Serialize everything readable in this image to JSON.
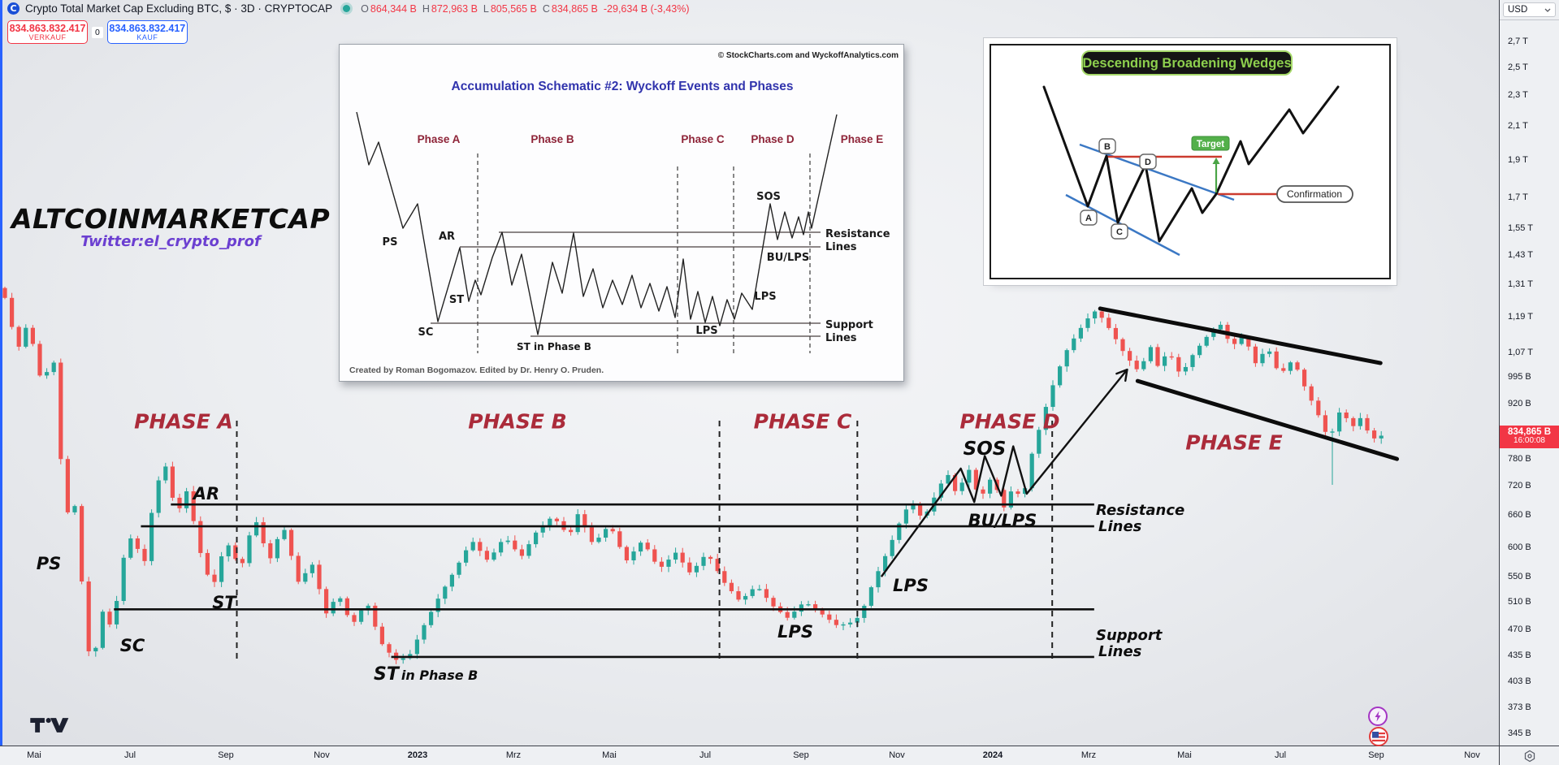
{
  "header": {
    "symbol_title": "Crypto Total Market Cap Excluding BTC, $ · 3D · CRYPTOCAP",
    "symbol_logo_letter": "C",
    "ohlc": [
      {
        "k": "O",
        "v": "864,344 B"
      },
      {
        "k": "H",
        "v": "872,963 B"
      },
      {
        "k": "L",
        "v": "805,565 B"
      },
      {
        "k": "C",
        "v": "834,865 B"
      }
    ],
    "change": "-29,634 B (-3,43%)"
  },
  "trade_panel": {
    "sell_value": "834.863.832.417",
    "sell_label": "VERKAUF",
    "spread": "0",
    "buy_value": "834.863.832.417",
    "buy_label": "KAUF"
  },
  "watermark": {
    "title": "ALTCOINMARKETCAP",
    "subtitle": "Twitter:el_crypto_prof"
  },
  "chart_labels": {
    "phase_a": "PHASE A",
    "phase_b": "PHASE B",
    "phase_c": "PHASE C",
    "phase_d": "PHASE D",
    "phase_e": "PHASE E",
    "ps": "PS",
    "sc": "SC",
    "st": "ST",
    "ar": "AR",
    "st_b_big": "ST",
    "st_b_small": "in Phase B",
    "lps_c": "LPS",
    "lps_d": "LPS",
    "sos": "SOS",
    "bu_lps": "BU/LPS",
    "resistance_1": "Resistance",
    "resistance_2": "Lines",
    "support_1": "Support",
    "support_2": "Lines"
  },
  "schematic": {
    "copyright": "© StockCharts.com and WyckoffAnalytics.com",
    "title": "Accumulation Schematic #2: Wyckoff Events and Phases",
    "phases": [
      "Phase A",
      "Phase B",
      "Phase C",
      "Phase D",
      "Phase E"
    ],
    "labels": {
      "ps": "PS",
      "ar": "AR",
      "sc": "SC",
      "st": "ST",
      "st_b": "ST in Phase B",
      "lps_c": "LPS",
      "lps_d": "LPS",
      "sos": "SOS",
      "bu": "BU/LPS",
      "res1": "Resistance",
      "res2": "Lines",
      "sup1": "Support",
      "sup2": "Lines"
    },
    "credit": "Created by Roman Bogomazov. Edited by Dr. Henry O. Pruden."
  },
  "wedges": {
    "title": "Descending Broadening Wedges",
    "target": "Target",
    "confirmation": "Confirmation",
    "points": [
      "A",
      "B",
      "C",
      "D"
    ]
  },
  "price_axis": {
    "currency": "USD",
    "last_price_value": 834.865,
    "price_badge": {
      "price": "834,865 B",
      "countdown": "16:00:08"
    },
    "ticks": [
      {
        "label": "2,7 T",
        "v": 2700
      },
      {
        "label": "2,5 T",
        "v": 2500
      },
      {
        "label": "2,3 T",
        "v": 2300
      },
      {
        "label": "2,1 T",
        "v": 2100
      },
      {
        "label": "1,9 T",
        "v": 1900
      },
      {
        "label": "1,7 T",
        "v": 1700
      },
      {
        "label": "1,55 T",
        "v": 1550
      },
      {
        "label": "1,43 T",
        "v": 1430
      },
      {
        "label": "1,31 T",
        "v": 1310
      },
      {
        "label": "1,19 T",
        "v": 1190
      },
      {
        "label": "1,07 T",
        "v": 1070
      },
      {
        "label": "995 B",
        "v": 995
      },
      {
        "label": "920 B",
        "v": 920
      },
      {
        "label": "780 B",
        "v": 780
      },
      {
        "label": "720 B",
        "v": 720
      },
      {
        "label": "660 B",
        "v": 660
      },
      {
        "label": "600 B",
        "v": 600
      },
      {
        "label": "550 B",
        "v": 550
      },
      {
        "label": "510 B",
        "v": 510
      },
      {
        "label": "470 B",
        "v": 470
      },
      {
        "label": "435 B",
        "v": 435
      },
      {
        "label": "403 B",
        "v": 403
      },
      {
        "label": "373 B",
        "v": 373
      },
      {
        "label": "345 B",
        "v": 345
      }
    ]
  },
  "time_axis": {
    "ticks": [
      {
        "label": "Mai"
      },
      {
        "label": "Jul"
      },
      {
        "label": "Sep"
      },
      {
        "label": "Nov"
      },
      {
        "label": "2023",
        "major": true
      },
      {
        "label": "Mrz"
      },
      {
        "label": "Mai"
      },
      {
        "label": "Jul"
      },
      {
        "label": "Sep"
      },
      {
        "label": "Nov"
      },
      {
        "label": "2024",
        "major": true
      },
      {
        "label": "Mrz"
      },
      {
        "label": "Mai"
      },
      {
        "label": "Jul"
      },
      {
        "label": "Sep"
      },
      {
        "label": "Nov"
      }
    ]
  },
  "colors": {
    "candle_up": "#26a69a",
    "candle_down": "#ef5350",
    "accent_red": "#f23645",
    "accent_blue": "#2962ff",
    "phase_label": "#ab2b3a",
    "annotation": "#0d0d0d"
  },
  "chart_data": {
    "type": "candlestick",
    "symbol": "CRYPTOCAP: Crypto Total Market Cap Excluding BTC",
    "timeframe": "3D",
    "currency": "USD",
    "scale": "logarithmic",
    "unit": "billions USD",
    "ohlc_values": {
      "open_b": 864.344,
      "high_b": 872.963,
      "low_b": 805.565,
      "close_b": 834.865,
      "change_b": -29.634,
      "change_pct": -3.43
    },
    "price_path": [
      [
        0.004,
        1300
      ],
      [
        0.014,
        1080
      ],
      [
        0.021,
        1175
      ],
      [
        0.03,
        980
      ],
      [
        0.038,
        1055
      ],
      [
        0.046,
        645
      ],
      [
        0.051,
        720
      ],
      [
        0.061,
        445
      ],
      [
        0.064,
        424
      ],
      [
        0.072,
        510
      ],
      [
        0.077,
        465
      ],
      [
        0.084,
        577
      ],
      [
        0.091,
        629
      ],
      [
        0.098,
        563
      ],
      [
        0.106,
        720
      ],
      [
        0.113,
        766
      ],
      [
        0.12,
        660
      ],
      [
        0.127,
        712
      ],
      [
        0.136,
        592
      ],
      [
        0.144,
        530
      ],
      [
        0.153,
        614
      ],
      [
        0.163,
        563
      ],
      [
        0.172,
        660
      ],
      [
        0.182,
        577
      ],
      [
        0.191,
        644
      ],
      [
        0.202,
        537
      ],
      [
        0.21,
        577
      ],
      [
        0.22,
        494
      ],
      [
        0.228,
        524
      ],
      [
        0.237,
        476
      ],
      [
        0.247,
        512
      ],
      [
        0.256,
        454
      ],
      [
        0.266,
        430
      ],
      [
        0.275,
        434
      ],
      [
        0.285,
        476
      ],
      [
        0.295,
        518
      ],
      [
        0.306,
        563
      ],
      [
        0.317,
        614
      ],
      [
        0.328,
        577
      ],
      [
        0.339,
        621
      ],
      [
        0.35,
        584
      ],
      [
        0.36,
        629
      ],
      [
        0.371,
        660
      ],
      [
        0.382,
        621
      ],
      [
        0.388,
        665
      ],
      [
        0.398,
        606
      ],
      [
        0.409,
        644
      ],
      [
        0.42,
        577
      ],
      [
        0.431,
        614
      ],
      [
        0.442,
        563
      ],
      [
        0.453,
        592
      ],
      [
        0.463,
        556
      ],
      [
        0.474,
        592
      ],
      [
        0.485,
        543
      ],
      [
        0.496,
        512
      ],
      [
        0.507,
        537
      ],
      [
        0.518,
        505
      ],
      [
        0.528,
        487
      ],
      [
        0.539,
        512
      ],
      [
        0.55,
        494
      ],
      [
        0.561,
        476
      ],
      [
        0.572,
        482
      ],
      [
        0.577,
        494
      ],
      [
        0.585,
        543
      ],
      [
        0.594,
        592
      ],
      [
        0.602,
        644
      ],
      [
        0.61,
        692
      ],
      [
        0.618,
        652
      ],
      [
        0.626,
        700
      ],
      [
        0.634,
        752
      ],
      [
        0.641,
        700
      ],
      [
        0.648,
        765
      ],
      [
        0.656,
        692
      ],
      [
        0.664,
        743
      ],
      [
        0.672,
        676
      ],
      [
        0.679,
        726
      ],
      [
        0.684,
        684
      ],
      [
        0.691,
        798
      ],
      [
        0.699,
        899
      ],
      [
        0.707,
        1004
      ],
      [
        0.715,
        1091
      ],
      [
        0.724,
        1159
      ],
      [
        0.732,
        1216
      ],
      [
        0.738,
        1187
      ],
      [
        0.745,
        1131
      ],
      [
        0.753,
        1065
      ],
      [
        0.762,
        1014
      ],
      [
        0.77,
        1091
      ],
      [
        0.774,
        1027
      ],
      [
        0.782,
        1078
      ],
      [
        0.79,
        1002
      ],
      [
        0.798,
        1065
      ],
      [
        0.806,
        1117
      ],
      [
        0.816,
        1172
      ],
      [
        0.824,
        1091
      ],
      [
        0.832,
        1131
      ],
      [
        0.84,
        1039
      ],
      [
        0.848,
        1091
      ],
      [
        0.856,
        1002
      ],
      [
        0.865,
        1052
      ],
      [
        0.873,
        966
      ],
      [
        0.881,
        899
      ],
      [
        0.889,
        826
      ],
      [
        0.897,
        910
      ],
      [
        0.904,
        857
      ],
      [
        0.911,
        888
      ],
      [
        0.917,
        826
      ],
      [
        0.922,
        838
      ]
    ],
    "long_wick": {
      "t": 0.889,
      "low_b": 724
    },
    "overlays": {
      "levels": [
        {
          "name": "resistance-upper",
          "v": 683,
          "t1": 0.114,
          "t2": 0.73
        },
        {
          "name": "resistance-lower",
          "v": 640,
          "t1": 0.094,
          "t2": 0.73
        },
        {
          "name": "support-upper",
          "v": 500,
          "t1": 0.076,
          "t2": 0.73
        },
        {
          "name": "support-lower",
          "v": 434,
          "t1": 0.261,
          "t2": 0.73
        }
      ],
      "phase_dividers": [
        0.158,
        0.48,
        0.572,
        0.702
      ],
      "trendlines": [
        {
          "name": "wedge-upper",
          "t1": 0.734,
          "v1": 1223,
          "t2": 0.921,
          "v2": 1040
        },
        {
          "name": "wedge-lower",
          "t1": 0.759,
          "v1": 986,
          "t2": 0.932,
          "v2": 782
        }
      ],
      "markup_path": [
        [
          0.588,
          551
        ],
        [
          0.641,
          760
        ],
        [
          0.65,
          688
        ],
        [
          0.657,
          789
        ],
        [
          0.668,
          701
        ],
        [
          0.676,
          812
        ],
        [
          0.685,
          705
        ],
        [
          0.752,
          1020
        ]
      ]
    }
  }
}
